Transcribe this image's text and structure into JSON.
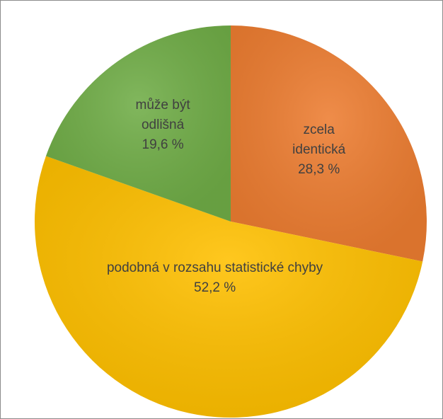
{
  "chart_data": {
    "type": "pie",
    "categories": [
      "zcela identická",
      "podobná v rozsahu statistické chyby",
      "může být odlišná"
    ],
    "values": [
      28.3,
      52.2,
      19.6
    ],
    "value_labels": [
      "28,3 %",
      "52,2 %",
      "19,6 %"
    ],
    "colors": [
      "#ed7d31",
      "#ffc000",
      "#70ad47"
    ]
  }
}
